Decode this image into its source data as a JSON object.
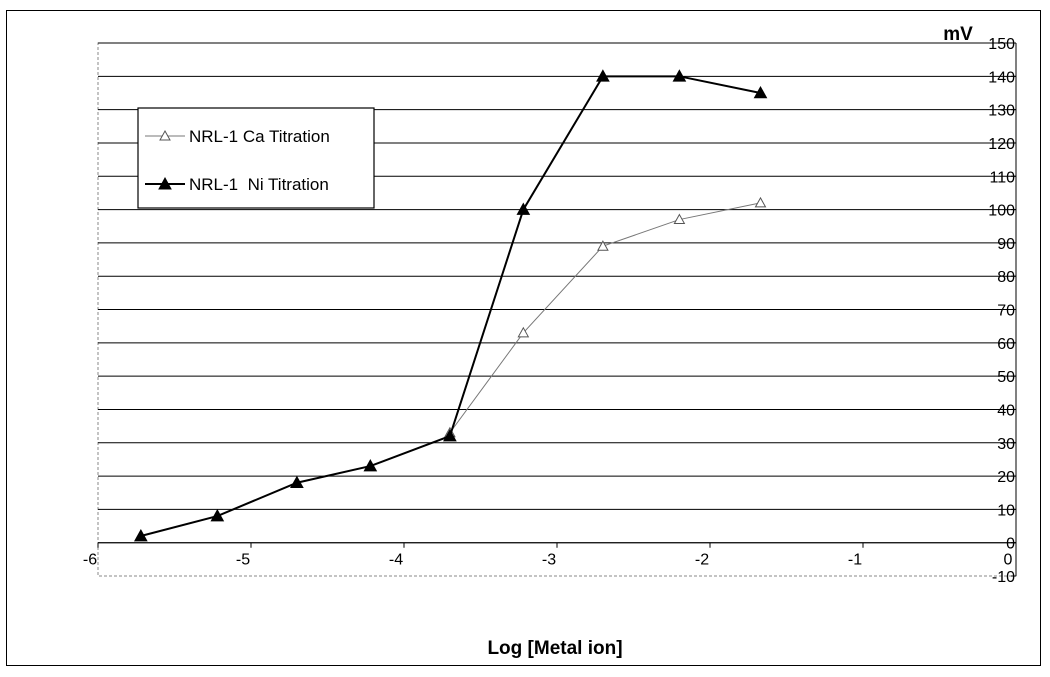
{
  "chart_data": {
    "type": "line",
    "xlabel": "Log [Metal ion]",
    "ylabel": "mV",
    "xlim": [
      -6,
      0
    ],
    "ylim": [
      -10,
      150
    ],
    "x_ticks": [
      "-6",
      "-5",
      "-4",
      "-3",
      "-2",
      "-1",
      "0"
    ],
    "y_ticks": [
      "150",
      "140",
      "130",
      "120",
      "110",
      "100",
      "90",
      "80",
      "70",
      "60",
      "50",
      "40",
      "30",
      "20",
      "10",
      "0",
      "-10"
    ],
    "grid": "horizontal",
    "legend_position": "top-left",
    "series": [
      {
        "name": "NRL-1 Ca Titration",
        "marker": "open-triangle",
        "color": "#777777",
        "x": [
          -3.7,
          -3.22,
          -2.7,
          -2.2,
          -1.67
        ],
        "y": [
          33,
          63,
          89,
          97,
          102
        ]
      },
      {
        "name": "NRL-1  Ni Titration",
        "marker": "filled-triangle",
        "color": "#000000",
        "x": [
          -5.72,
          -5.22,
          -4.7,
          -4.22,
          -3.7,
          -3.22,
          -2.7,
          -2.2,
          -1.67
        ],
        "y": [
          2,
          8,
          18,
          23,
          32,
          100,
          140,
          140,
          135
        ]
      }
    ]
  }
}
